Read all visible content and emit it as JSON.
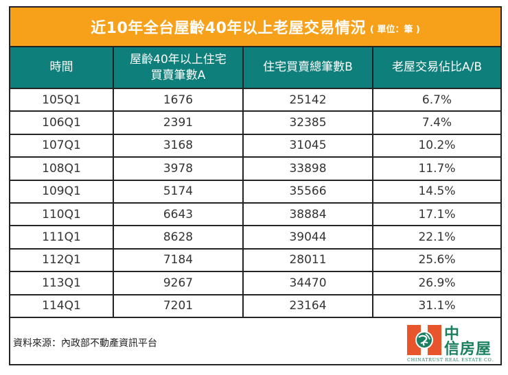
{
  "title": {
    "main": "近10年全台屋齡40年以上老屋交易情況",
    "unit": "( 單位：筆 )"
  },
  "colors": {
    "title_bg": "#F7A11A",
    "header_bg": "#0E7F7B",
    "logo_orange": "#E8542B",
    "logo_green": "#1A7F5E"
  },
  "table": {
    "headers": [
      "時間",
      "屋齡40年以上住宅買賣筆數A",
      "住宅買賣總筆數B",
      "老屋交易佔比A/B"
    ],
    "header_lines": {
      "col2_line1": "屋齡40年以上住宅",
      "col2_line2": "買賣筆數A"
    },
    "rows": [
      [
        "105Q1",
        "1676",
        "25142",
        "6.7%"
      ],
      [
        "106Q1",
        "2391",
        "32385",
        "7.4%"
      ],
      [
        "107Q1",
        "3168",
        "31045",
        "10.2%"
      ],
      [
        "108Q1",
        "3978",
        "33898",
        "11.7%"
      ],
      [
        "109Q1",
        "5174",
        "35566",
        "14.5%"
      ],
      [
        "110Q1",
        "6643",
        "38884",
        "17.1%"
      ],
      [
        "111Q1",
        "8628",
        "39044",
        "22.1%"
      ],
      [
        "112Q1",
        "7184",
        "28011",
        "25.6%"
      ],
      [
        "113Q1",
        "9267",
        "34470",
        "26.9%"
      ],
      [
        "114Q1",
        "7201",
        "23164",
        "31.1%"
      ]
    ]
  },
  "footer": {
    "source": "資料來源：內政部不動產資訊平台",
    "logo": {
      "cn_line1": "中",
      "cn_line2": "信房屋",
      "en": "CHINATRUST REAL ESTATE CO."
    }
  }
}
